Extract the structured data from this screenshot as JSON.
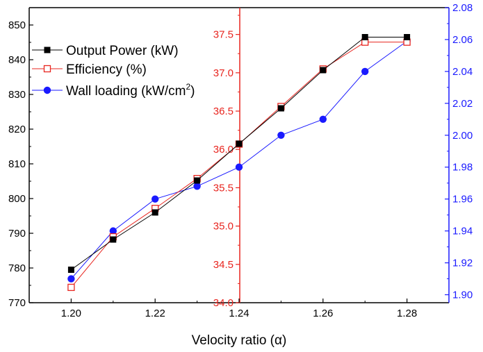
{
  "chart_data": {
    "type": "line",
    "x": [
      1.2,
      1.21,
      1.22,
      1.23,
      1.24,
      1.25,
      1.26,
      1.27,
      1.28
    ],
    "xlabel": "Velocity ratio (α)",
    "xlim": [
      1.19,
      1.29
    ],
    "xticks": [
      "1.20",
      "1.22",
      "1.24",
      "1.26",
      "1.28"
    ],
    "axes": {
      "left": {
        "ylim": [
          770,
          855
        ],
        "ticks": [
          "770",
          "780",
          "790",
          "800",
          "810",
          "820",
          "830",
          "840",
          "850"
        ],
        "color": "#000000"
      },
      "middle": {
        "ylim": [
          34.0,
          37.85
        ],
        "ticks": [
          "34.0",
          "34.5",
          "35.0",
          "35.5",
          "36.0",
          "36.5",
          "37.0",
          "37.5"
        ],
        "color": "#e8251f"
      },
      "right": {
        "ylim": [
          1.895,
          2.08
        ],
        "ticks": [
          "1.90",
          "1.92",
          "1.94",
          "1.96",
          "1.98",
          "2.00",
          "2.02",
          "2.04",
          "2.06",
          "2.08"
        ],
        "color": "#1a1aff"
      }
    },
    "series": [
      {
        "name": "Output Power (kW)",
        "axis": "left",
        "color": "#000000",
        "marker": "filled-square",
        "values": [
          779.5,
          788.2,
          796.0,
          805.2,
          815.8,
          826.0,
          837.0,
          846.5,
          846.5
        ]
      },
      {
        "name": "Efficiency (%)",
        "axis": "middle",
        "color": "#e8251f",
        "marker": "open-square",
        "values": [
          34.2,
          34.86,
          35.23,
          35.62,
          36.07,
          36.56,
          37.05,
          37.4,
          37.4
        ]
      },
      {
        "name": "Wall loading (kW/cm²)",
        "axis": "right",
        "color": "#1a1aff",
        "marker": "filled-circle",
        "values": [
          1.91,
          1.94,
          1.96,
          1.968,
          1.98,
          2.0,
          2.01,
          2.04,
          2.059
        ]
      }
    ],
    "legend": {
      "position": "top-left",
      "entries": [
        {
          "label": "Output Power (kW)"
        },
        {
          "label": "Efficiency (%)"
        },
        {
          "label": "Wall loading (kW/cm",
          "sup": "2",
          "tail": ")"
        }
      ]
    }
  }
}
